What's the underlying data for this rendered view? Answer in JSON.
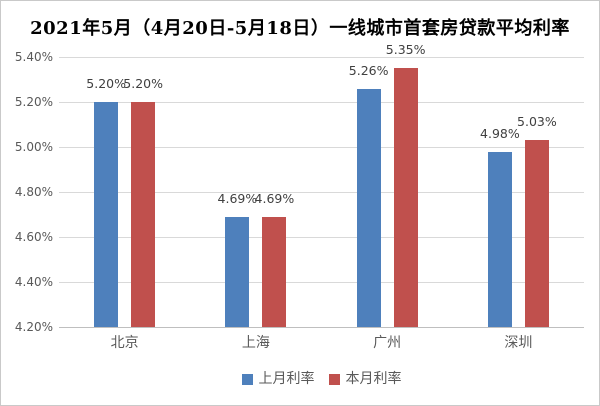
{
  "chart_data": {
    "type": "bar",
    "title": "2021年5月（4月20日-5月18日）一线城市首套房贷款平均利率",
    "categories": [
      "北京",
      "上海",
      "广州",
      "深圳"
    ],
    "series": [
      {
        "name": "上月利率",
        "color": "#4E80BC",
        "values": [
          5.2,
          4.69,
          5.26,
          4.98
        ]
      },
      {
        "name": "本月利率",
        "color": "#C0504D",
        "values": [
          5.2,
          4.69,
          5.35,
          5.03
        ]
      }
    ],
    "data_labels": [
      "5.20%",
      "5.20%",
      "4.69%",
      "4.69%",
      "5.26%",
      "5.35%",
      "4.98%",
      "5.03%"
    ],
    "ylim": [
      4.2,
      5.4
    ],
    "yticks": [
      "5.40%",
      "5.20%",
      "5.00%",
      "4.80%",
      "4.60%",
      "4.40%",
      "4.20%"
    ],
    "value_suffix": "%",
    "grid": true,
    "legend_position": "bottom",
    "colors": {
      "gridline": "#D9D9D9",
      "axis_line": "#BFBFBF",
      "tick_label": "#595959",
      "data_label": "#404040",
      "category_label": "#595959",
      "title": "#000000",
      "background": "#FFFFFF",
      "border": "#C9C9C9"
    }
  }
}
